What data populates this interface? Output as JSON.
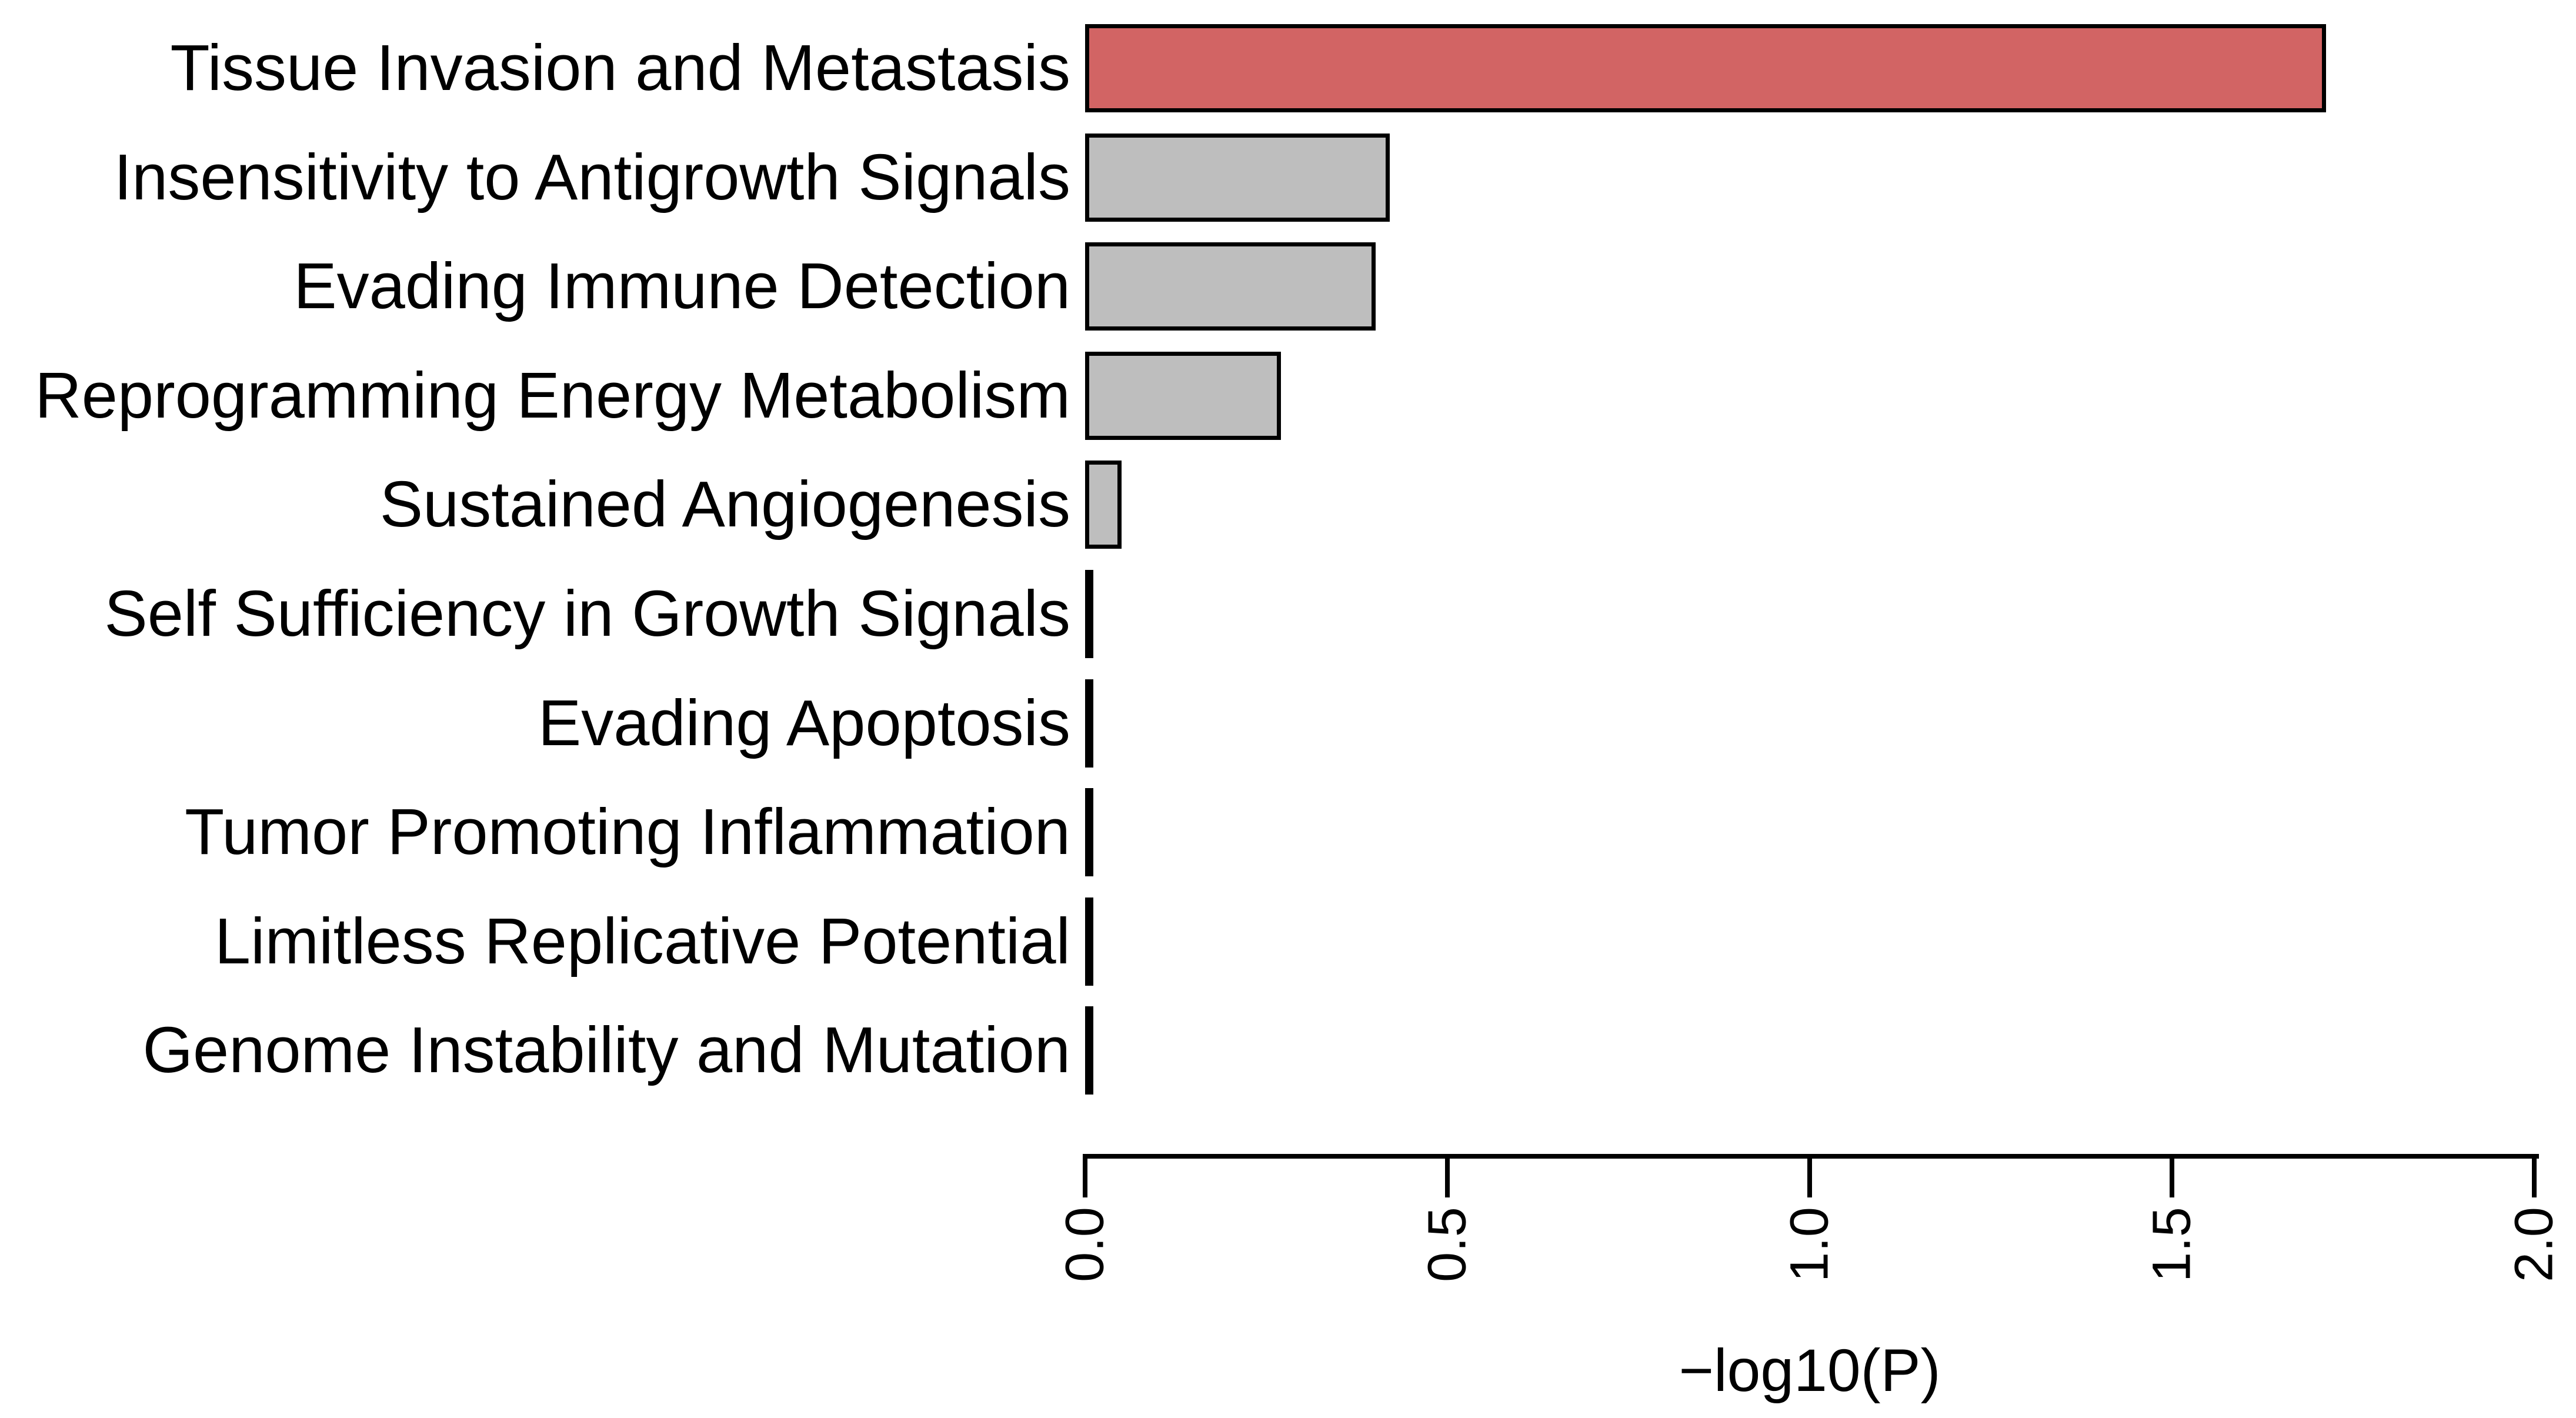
{
  "chart_data": {
    "type": "bar",
    "orientation": "horizontal",
    "title": "",
    "xlabel": "−log10(P)",
    "ylabel": "",
    "categories": [
      "Tissue Invasion and Metastasis",
      "Insensitivity to Antigrowth Signals",
      "Evading Immune Detection",
      "Reprogramming Energy Metabolism",
      "Sustained Angiogenesis",
      "Self Sufficiency in Growth Signals",
      "Evading Apoptosis",
      "Tumor Promoting Inflammation",
      "Limitless Replicative Potential",
      "Genome Instability and Mutation"
    ],
    "values": [
      1.71,
      0.42,
      0.4,
      0.27,
      0.05,
      0.01,
      0,
      0,
      0,
      0
    ],
    "x_ticks": [
      "0.0",
      "0.5",
      "1.0",
      "1.5",
      "2.0"
    ],
    "xlim": [
      0,
      2.0
    ],
    "grid": false,
    "legend": "none",
    "highlight_index": 0,
    "colors": {
      "highlight_fill": "#d26464",
      "default_fill": "#bebebe",
      "bar_border": "#000000",
      "axis": "#000000",
      "text": "#000000",
      "background": "#ffffff"
    }
  }
}
